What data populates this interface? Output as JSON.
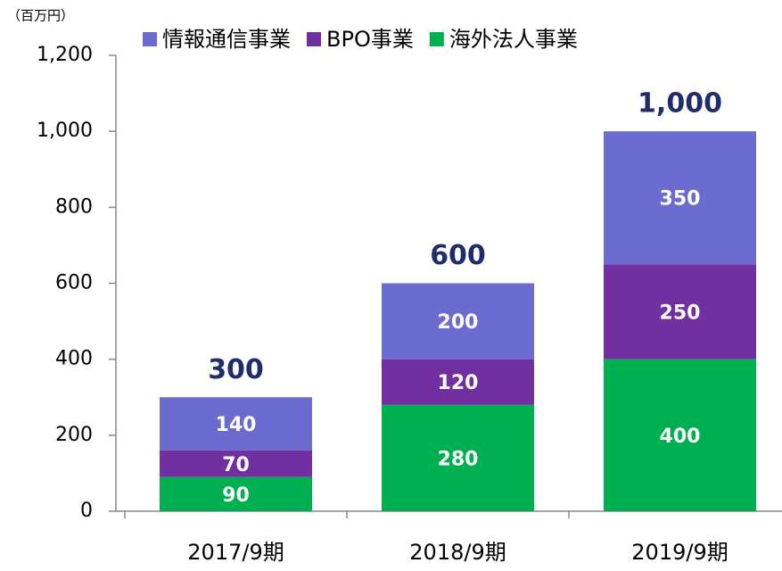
{
  "chart_data": {
    "type": "stacked-bar",
    "y_unit": "（百万円）",
    "categories": [
      "2017/9期",
      "2018/9期",
      "2019/9期"
    ],
    "series": [
      {
        "name": "海外法人事業",
        "color": "#00B050",
        "values": [
          90,
          280,
          400
        ]
      },
      {
        "name": "BPO事業",
        "color": "#7030A0",
        "values": [
          70,
          120,
          250
        ]
      },
      {
        "name": "情報通信事業",
        "color": "#6B6BD0",
        "values": [
          140,
          200,
          350
        ]
      }
    ],
    "totals": {
      "values": [
        300,
        600,
        1000
      ],
      "value_labels": [
        "300",
        "600",
        "1,000"
      ],
      "color": "#1F2D6B"
    },
    "ylim": [
      0,
      1200
    ],
    "yticks": [
      0,
      200,
      400,
      600,
      800,
      {
        "value": 1000,
        "label": "1,000"
      },
      {
        "value": 1200,
        "label": "1,200"
      }
    ],
    "legend": "top"
  }
}
